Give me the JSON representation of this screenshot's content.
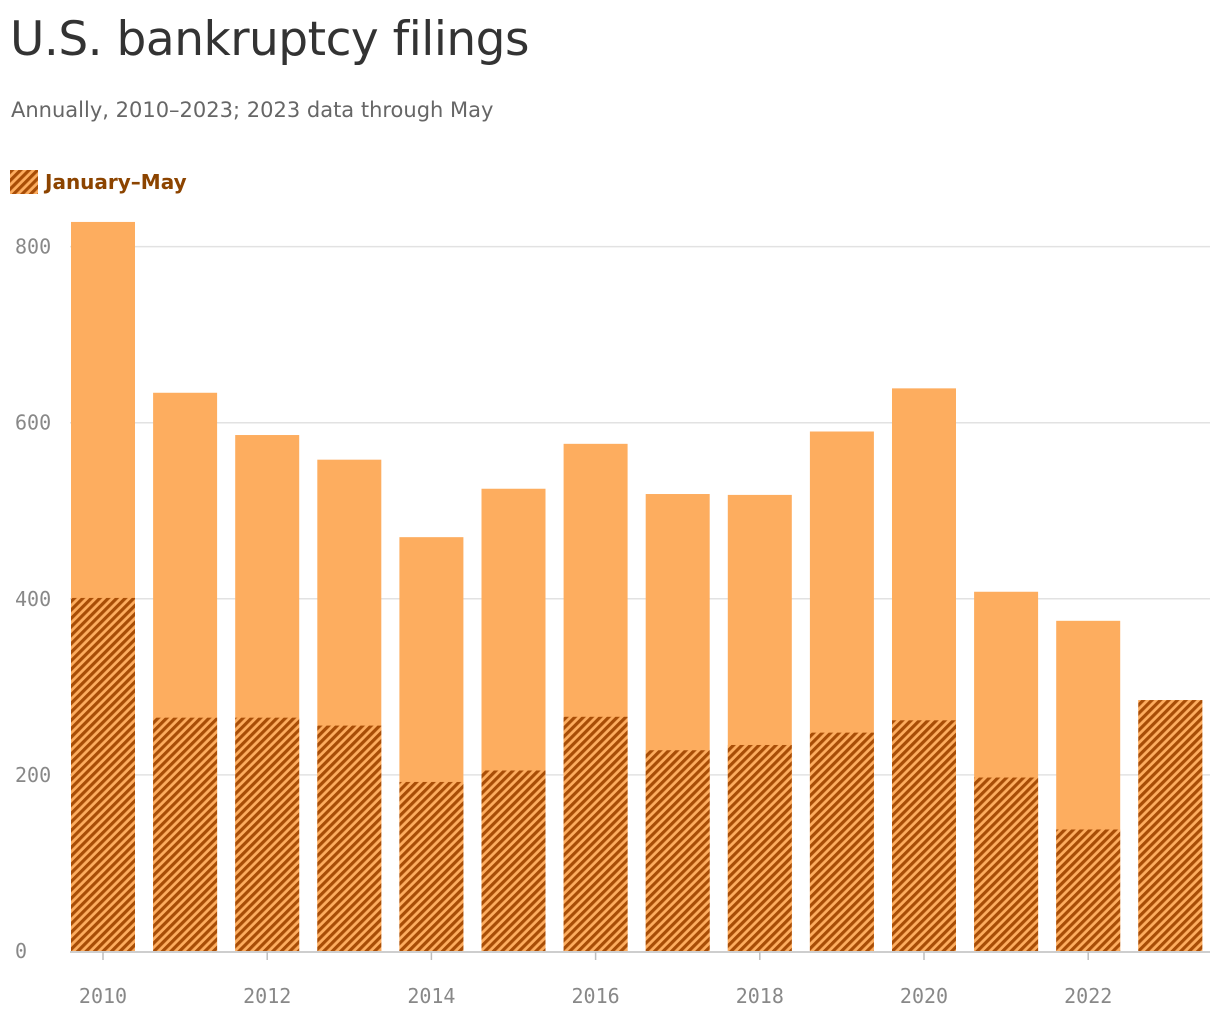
{
  "title": "U.S. bankruptcy filings",
  "subtitle": "Annually, 2010–2023; 2023 data through May",
  "legend": {
    "label": "January–May",
    "pattern_icon": "hatched-swatch"
  },
  "colors": {
    "full_year": "#fdad5f",
    "jan_may_stripe": "#a84d06",
    "legend_text": "#8c4400",
    "grid": "#e2e2e2",
    "tick_text": "#888888"
  },
  "chart_data": {
    "type": "bar",
    "categories": [
      "2010",
      "2011",
      "2012",
      "2013",
      "2014",
      "2015",
      "2016",
      "2017",
      "2018",
      "2019",
      "2020",
      "2021",
      "2022",
      "2023"
    ],
    "series": [
      {
        "values": [
          828,
          634,
          586,
          558,
          470,
          525,
          576,
          519,
          518,
          590,
          639,
          408,
          375,
          285
        ]
      },
      {
        "name": "January–May",
        "values": [
          401,
          265,
          265,
          256,
          192,
          205,
          266,
          228,
          234,
          248,
          262,
          197,
          138,
          285
        ]
      }
    ],
    "x_ticks": [
      "2010",
      "2012",
      "2014",
      "2016",
      "2018",
      "2020",
      "2022"
    ],
    "y_ticks": [
      0,
      200,
      400,
      600,
      800
    ],
    "ylim": [
      0,
      830
    ],
    "xlabel": "",
    "ylabel": "",
    "grid": true,
    "stacking": "overlay",
    "legend_position": "top-left"
  }
}
